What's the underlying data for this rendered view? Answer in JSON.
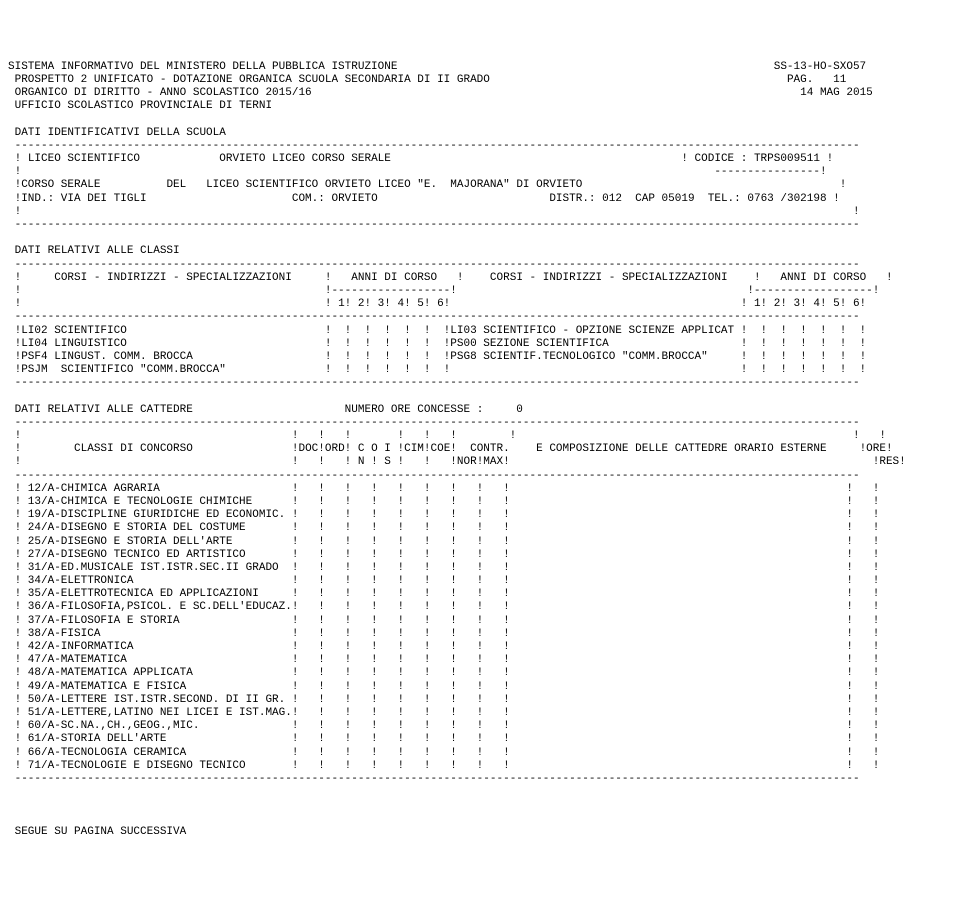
{
  "header": {
    "line1_left": "SISTEMA INFORMATIVO DEL MINISTERO DELLA PUBBLICA ISTRUZIONE",
    "line1_right": "SS-13-HO-SXO57",
    "line2_left": "PROSPETTO 2 UNIFICATO - DOTAZIONE ORGANICA SCUOLA SECONDARIA DI II GRADO",
    "line2_right": "PAG.   11",
    "line3_left": "ORGANICO DI DIRITTO - ANNO SCOLASTICO 2015/16",
    "line3_right": "14 MAG 2015",
    "line4": "UFFICIO SCOLASTICO PROVINCIALE DI TERNI"
  },
  "section1_title": "DATI IDENTIFICATIVI DELLA SCUOLA",
  "school": {
    "row1_col1": "LICEO SCIENTIFICO",
    "row1_col2": "ORVIETO LICEO CORSO SERALE",
    "row1_code": "CODICE : TRPS009511",
    "row2_col1": "CORSO SERALE",
    "row2_col2": "DEL",
    "row2_col3": "LICEO SCIENTIFICO ORVIETO LICEO \"E.  MAJORANA\" DI ORVIETO",
    "row3_col1": "IND.: VIA DEI TIGLI",
    "row3_col2": "COM.: ORVIETO",
    "row3_col3": "DISTR.: 012  CAP 05019  TEL.: 0763 /302198"
  },
  "section2_title": "DATI RELATIVI ALLE CLASSI",
  "classi_header": {
    "col1": "CORSI - INDIRIZZI - SPECIALIZZAZIONI",
    "col2": "ANNI DI CORSO",
    "col3": "CORSI - INDIRIZZI - SPECIALIZZAZIONI",
    "col4": "ANNI DI CORSO",
    "years": "1! 2! 3! 4! 5! 6!"
  },
  "classi_rows": [
    {
      "left": "LI02 SCIENTIFICO",
      "right": "LI03 SCIENTIFICO - OPZIONE SCIENZE APPLICAT"
    },
    {
      "left": "LI04 LINGUISTICO",
      "right": "PS00 SEZIONE SCIENTIFICA"
    },
    {
      "left": "PSF4 LINGUST. COMM. BROCCA",
      "right": "PSG8 SCIENTIF.TECNOLOGICO \"COMM.BROCCA\""
    },
    {
      "left": "PSJM  SCIENTIFICO \"COMM.BROCCA\"",
      "right": ""
    }
  ],
  "section3_title": "DATI RELATIVI ALLE CATTEDRE",
  "section3_right": "NUMERO ORE CONCESSE :     0",
  "cattedre_header": {
    "col1": "CLASSI DI CONCORSO",
    "cols": "!DOC!ORD! C O I !CIM!COE!  CONTR.    E COMPOSIZIONE DELLE CATTEDRE ORARIO ESTERNE     !ORE!",
    "cols2": "!   !   ! N ! S !   !   !NOR!MAX!                                                       !RES!"
  },
  "cattedre_rows": [
    "12/A-CHIMICA AGRARIA",
    "13/A-CHIMICA E TECNOLOGIE CHIMICHE",
    "19/A-DISCIPLINE GIURIDICHE ED ECONOMIC.",
    "24/A-DISEGNO E STORIA DEL COSTUME",
    "25/A-DISEGNO E STORIA DELL'ARTE",
    "27/A-DISEGNO TECNICO ED ARTISTICO",
    "31/A-ED.MUSICALE IST.ISTR.SEC.II GRADO",
    "34/A-ELETTRONICA",
    "35/A-ELETTROTECNICA ED APPLICAZIONI",
    "36/A-FILOSOFIA,PSICOL. E SC.DELL'EDUCAZ.",
    "37/A-FILOSOFIA E STORIA",
    "38/A-FISICA",
    "42/A-INFORMATICA",
    "47/A-MATEMATICA",
    "48/A-MATEMATICA APPLICATA",
    "49/A-MATEMATICA E FISICA",
    "50/A-LETTERE IST.ISTR.SECOND. DI II GR.",
    "51/A-LETTERE,LATINO NEI LICEI E IST.MAG.",
    "60/A-SC.NA.,CH.,GEOG.,MIC.",
    "61/A-STORIA DELL'ARTE",
    "66/A-TECNOLOGIA CERAMICA",
    "71/A-TECNOLOGIE E DISEGNO TECNICO"
  ],
  "footer": "SEGUE SU PAGINA SUCCESSIVA",
  "dash_full": "--------------------------------------------------------------------------------------------------------------------------------",
  "dash_code": "----------------"
}
